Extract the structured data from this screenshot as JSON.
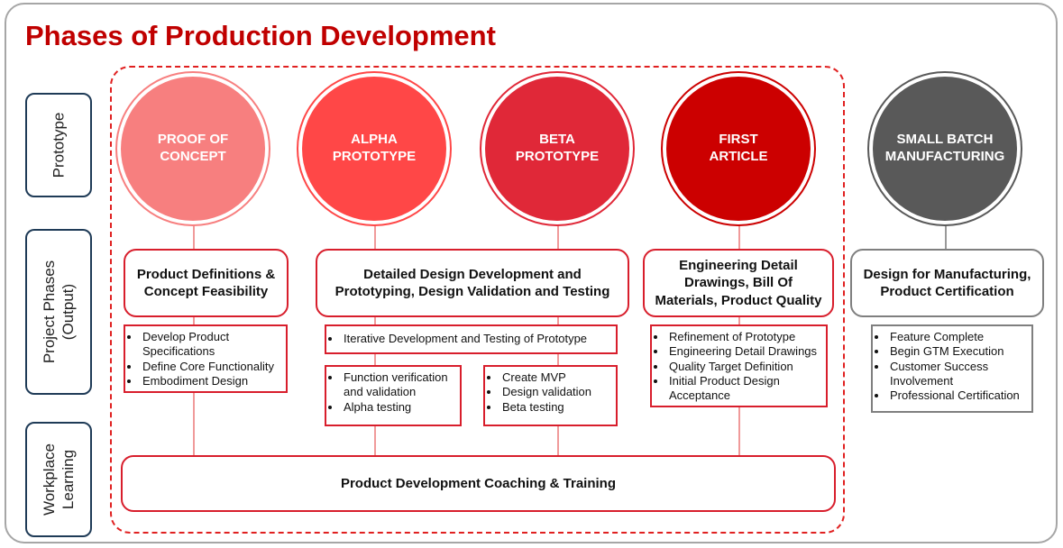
{
  "title": "Phases of Production Development",
  "row_labels": [
    [
      "Prototype"
    ],
    [
      "Project Phases",
      "(Output)"
    ],
    [
      "Workplace",
      "Learning"
    ]
  ],
  "phases": [
    {
      "label": [
        "PROOF OF",
        "CONCEPT"
      ]
    },
    {
      "label": [
        "ALPHA",
        "PROTOTYPE"
      ]
    },
    {
      "label": [
        "BETA",
        "PROTOTYPE"
      ]
    },
    {
      "label": [
        "FIRST",
        "ARTICLE"
      ]
    },
    {
      "label": [
        "SMALL BATCH",
        "MANUFACTURING"
      ]
    }
  ],
  "outputs": [
    {
      "title": "Product Definitions & Concept Feasibility",
      "task_groups": [
        [
          "Develop Product Specifications",
          "Define Core Functionality",
          "Embodiment Design"
        ]
      ]
    },
    {
      "title": "Detailed Design Development and Prototyping, Design Validation and Testing",
      "task_groups": [
        [
          "Iterative Development and Testing of Prototype"
        ],
        [
          "Function verification and validation",
          "Alpha testing"
        ],
        [
          "Create MVP",
          "Design validation",
          "Beta testing"
        ]
      ]
    },
    {
      "title": "Engineering Detail Drawings, Bill Of Materials, Product Quality",
      "task_groups": [
        [
          "Refinement of Prototype",
          "Engineering Detail Drawings",
          "Quality Target Definition",
          "Initial Product Design Acceptance"
        ]
      ]
    },
    {
      "title": "Design for Manufacturing, Product Certification",
      "task_groups": [
        [
          "Feature Complete",
          "Begin GTM Execution",
          "Customer Success Involvement",
          "Professional Certification"
        ]
      ]
    }
  ],
  "learning": "Product Development Coaching & Training"
}
